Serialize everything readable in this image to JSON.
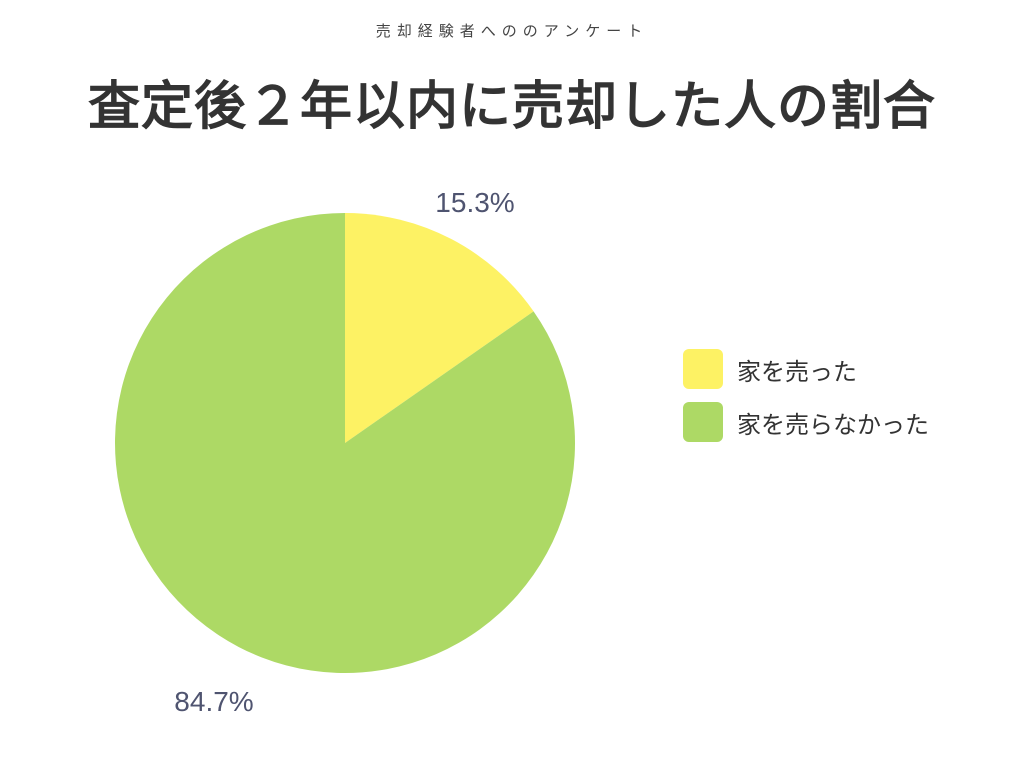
{
  "header": {
    "subtitle": "売却経験者へののアンケート",
    "title": "査定後２年以内に売却した人の割合"
  },
  "colors": {
    "sold": "#fdf264",
    "not_sold": "#add965",
    "label_text": "#4f5470",
    "title_text": "#333333"
  },
  "chart_data": {
    "type": "pie",
    "title": "査定後２年以内に売却した人の割合",
    "slices": [
      {
        "name": "家を売った",
        "value": 15.3,
        "label": "15.3%",
        "color": "#fdf264"
      },
      {
        "name": "家を売らなかった",
        "value": 84.7,
        "label": "84.7%",
        "color": "#add965"
      }
    ],
    "start_angle": "12 o'clock",
    "direction": "clockwise",
    "legend_position": "right"
  }
}
